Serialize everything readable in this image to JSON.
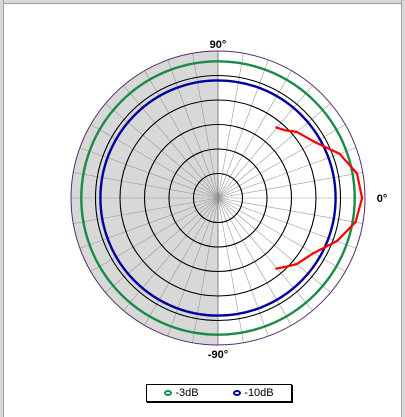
{
  "chart_data": {
    "type": "polar",
    "title": "",
    "angle_labels": {
      "top": "90°",
      "right": "0°",
      "bottom": "-90°"
    },
    "rings": 6,
    "spokes_deg_step": 10,
    "reference_circles": [
      {
        "name": "-3dB",
        "radius_frac": 0.93,
        "color": "#1a8a4a"
      },
      {
        "name": "-10dB",
        "radius_frac": 0.8,
        "color": "#0000a0"
      }
    ],
    "shaded_half": "left",
    "pattern": {
      "color": "#ff0000",
      "points": [
        {
          "angle": 51,
          "r": 0.62
        },
        {
          "angle": 45,
          "r": 0.65
        },
        {
          "angle": 40,
          "r": 0.7
        },
        {
          "angle": 30,
          "r": 0.76
        },
        {
          "angle": 20,
          "r": 0.88
        },
        {
          "angle": 10,
          "r": 0.96
        },
        {
          "angle": 0,
          "r": 0.98
        },
        {
          "angle": -10,
          "r": 0.95
        },
        {
          "angle": -20,
          "r": 0.86
        },
        {
          "angle": -30,
          "r": 0.75
        },
        {
          "angle": -40,
          "r": 0.7
        },
        {
          "angle": -45,
          "r": 0.66
        },
        {
          "angle": -51,
          "r": 0.62
        }
      ]
    }
  },
  "legend": {
    "items": [
      {
        "label": "-3dB",
        "color": "#1a8a4a"
      },
      {
        "label": "-10dB",
        "color": "#0000a0"
      }
    ]
  }
}
